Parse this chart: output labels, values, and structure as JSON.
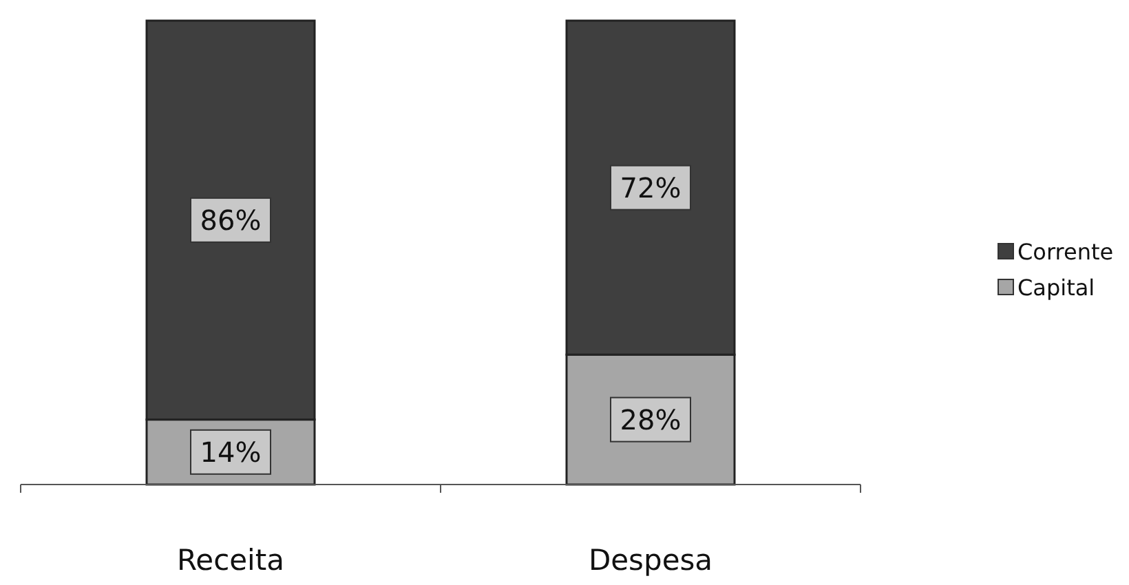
{
  "chart_data": {
    "type": "bar",
    "stacked": true,
    "categories": [
      "Receita",
      "Despesa"
    ],
    "series": [
      {
        "name": "Capital",
        "color": "#a6a6a6",
        "values": [
          14,
          28
        ],
        "value_labels": [
          "14%",
          "28%"
        ]
      },
      {
        "name": "Corrente",
        "color": "#3f3f3f",
        "values": [
          86,
          72
        ],
        "value_labels": [
          "86%",
          "72%"
        ]
      }
    ],
    "legend": "right"
  }
}
